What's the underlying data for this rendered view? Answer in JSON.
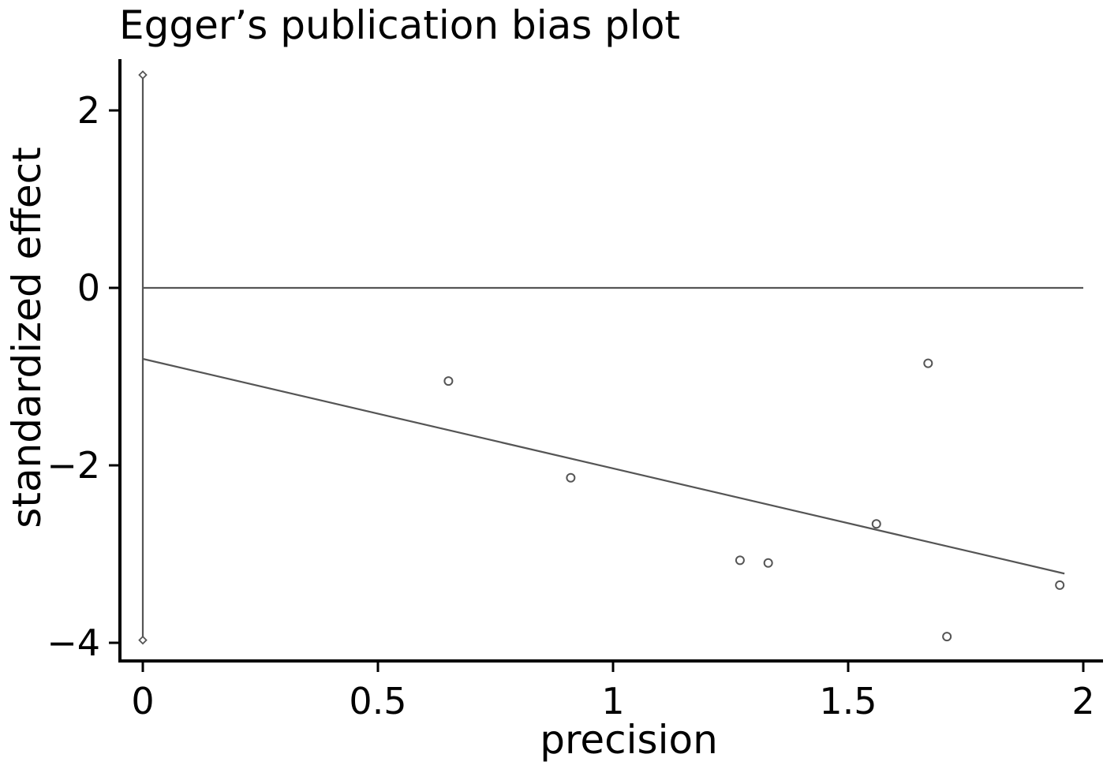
{
  "chart_data": {
    "type": "scatter",
    "title": "Egger’s publication bias plot",
    "xlabel": "precision",
    "ylabel": "standardized effect",
    "xlim": [
      -0.05,
      2.02
    ],
    "ylim": [
      -4.35,
      2.6
    ],
    "x_ticks": [
      0,
      0.5,
      1,
      1.5,
      2
    ],
    "x_tick_labels": [
      "0",
      "0.5",
      "1",
      "1.5",
      "2"
    ],
    "y_ticks": [
      -4,
      -2,
      0,
      2
    ],
    "y_tick_labels": [
      "−4",
      "−2",
      "0",
      "2"
    ],
    "grid": false,
    "legend": "none",
    "series": [
      {
        "type": "scatter",
        "marker": "circle",
        "x": [
          0.65,
          0.91,
          1.27,
          1.33,
          1.56,
          1.67,
          1.71,
          1.95
        ],
        "y": [
          -1.05,
          -2.14,
          -3.07,
          -3.1,
          -2.66,
          -0.85,
          -3.93,
          -3.35
        ]
      },
      {
        "type": "line",
        "x": [
          0,
          1.96
        ],
        "y": [
          -0.8,
          -3.22
        ]
      },
      {
        "type": "line",
        "x": [
          0,
          2
        ],
        "y": [
          0,
          0
        ]
      },
      {
        "type": "interval",
        "marker": "diamond",
        "x": [
          0,
          0
        ],
        "y": [
          2.4,
          -3.97
        ]
      }
    ],
    "colors": {
      "axis": "#000000",
      "marks": "#555555",
      "marker_fill": "#ffffff"
    }
  }
}
